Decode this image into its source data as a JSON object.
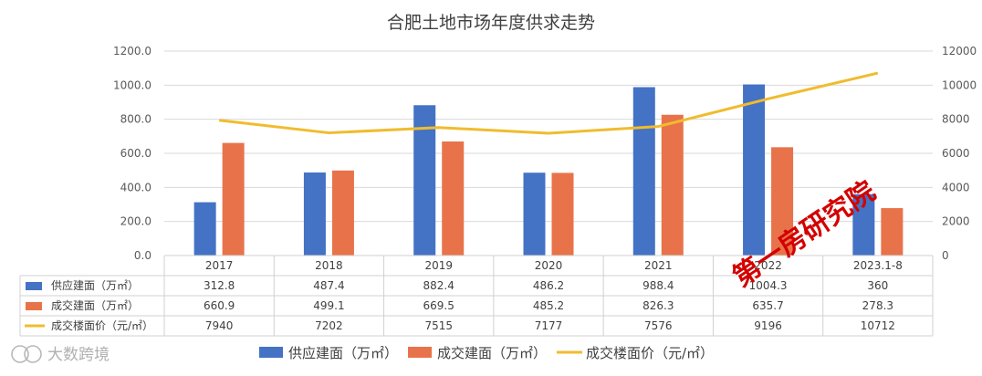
{
  "chart_data": {
    "type": "bar",
    "title": "合肥土地市场年度供求走势",
    "categories": [
      "2017",
      "2018",
      "2019",
      "2020",
      "2021",
      "2022",
      "2023.1-8"
    ],
    "series": [
      {
        "name": "供应建面（万㎡）",
        "kind": "bar",
        "axis": "left",
        "color": "#4472C4",
        "values": [
          312.8,
          487.4,
          882.4,
          486.2,
          988.4,
          1004.3,
          360
        ],
        "labels": [
          "312.8",
          "487.4",
          "882.4",
          "486.2",
          "988.4",
          "1004.3",
          "360"
        ]
      },
      {
        "name": "成交建面（万㎡）",
        "kind": "bar",
        "axis": "left",
        "color": "#E8734A",
        "values": [
          660.9,
          499.1,
          669.5,
          485.2,
          826.3,
          635.7,
          278.3
        ],
        "labels": [
          "660.9",
          "499.1",
          "669.5",
          "485.2",
          "826.3",
          "635.7",
          "278.3"
        ]
      },
      {
        "name": "成交楼面价（元/㎡）",
        "kind": "line",
        "axis": "right",
        "color": "#F0BC2E",
        "values": [
          7940,
          7202,
          7515,
          7177,
          7576,
          9196,
          10712
        ],
        "labels": [
          "7940",
          "7202",
          "7515",
          "7177",
          "7576",
          "9196",
          "10712"
        ]
      }
    ],
    "y_left": {
      "min": 0,
      "max": 1200,
      "ticks": [
        "0.0",
        "200.0",
        "400.0",
        "600.0",
        "800.0",
        "1000.0",
        "1200.0"
      ]
    },
    "y_right": {
      "min": 0,
      "max": 12000,
      "ticks": [
        "0",
        "2000",
        "4000",
        "6000",
        "8000",
        "10000",
        "12000"
      ]
    },
    "grid": true,
    "legend": "bottom",
    "data_table": true
  },
  "watermarks": {
    "red": "第一房研究院",
    "grey": "大数跨境"
  }
}
